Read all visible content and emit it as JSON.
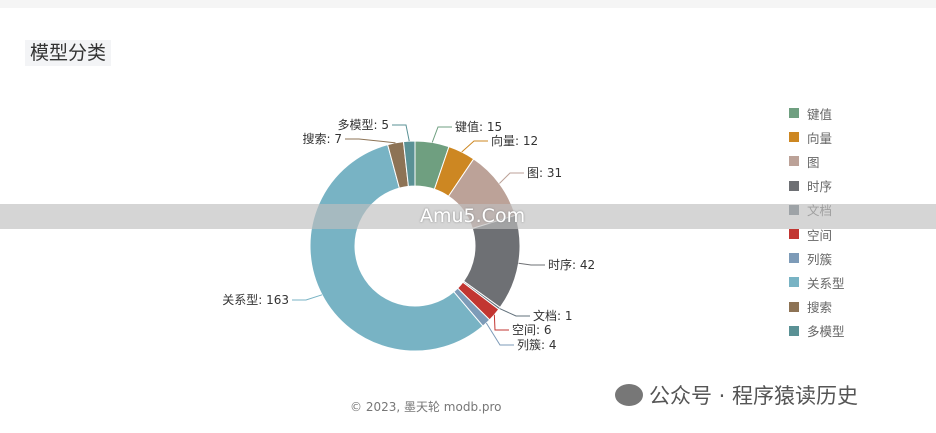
{
  "title": "模型分类",
  "chart_data": {
    "type": "pie",
    "donut": true,
    "title": "模型分类",
    "legend_position": "right",
    "categories": [
      "键值",
      "向量",
      "图",
      "时序",
      "文档",
      "空间",
      "列簇",
      "关系型",
      "搜索",
      "多模型"
    ],
    "values": [
      15,
      12,
      31,
      42,
      1,
      6,
      4,
      163,
      7,
      5
    ],
    "colors": [
      "#6f9f80",
      "#cd8722",
      "#bca298",
      "#6e7074",
      "#61707b",
      "#c23531",
      "#7d9bb8",
      "#78b3c4",
      "#8d7355",
      "#5a9195"
    ]
  },
  "watermark": "Amu5.Com",
  "copyright": "© 2023, 墨天轮 modb.pro",
  "wechat": "公众号 · 程序猿读历史"
}
